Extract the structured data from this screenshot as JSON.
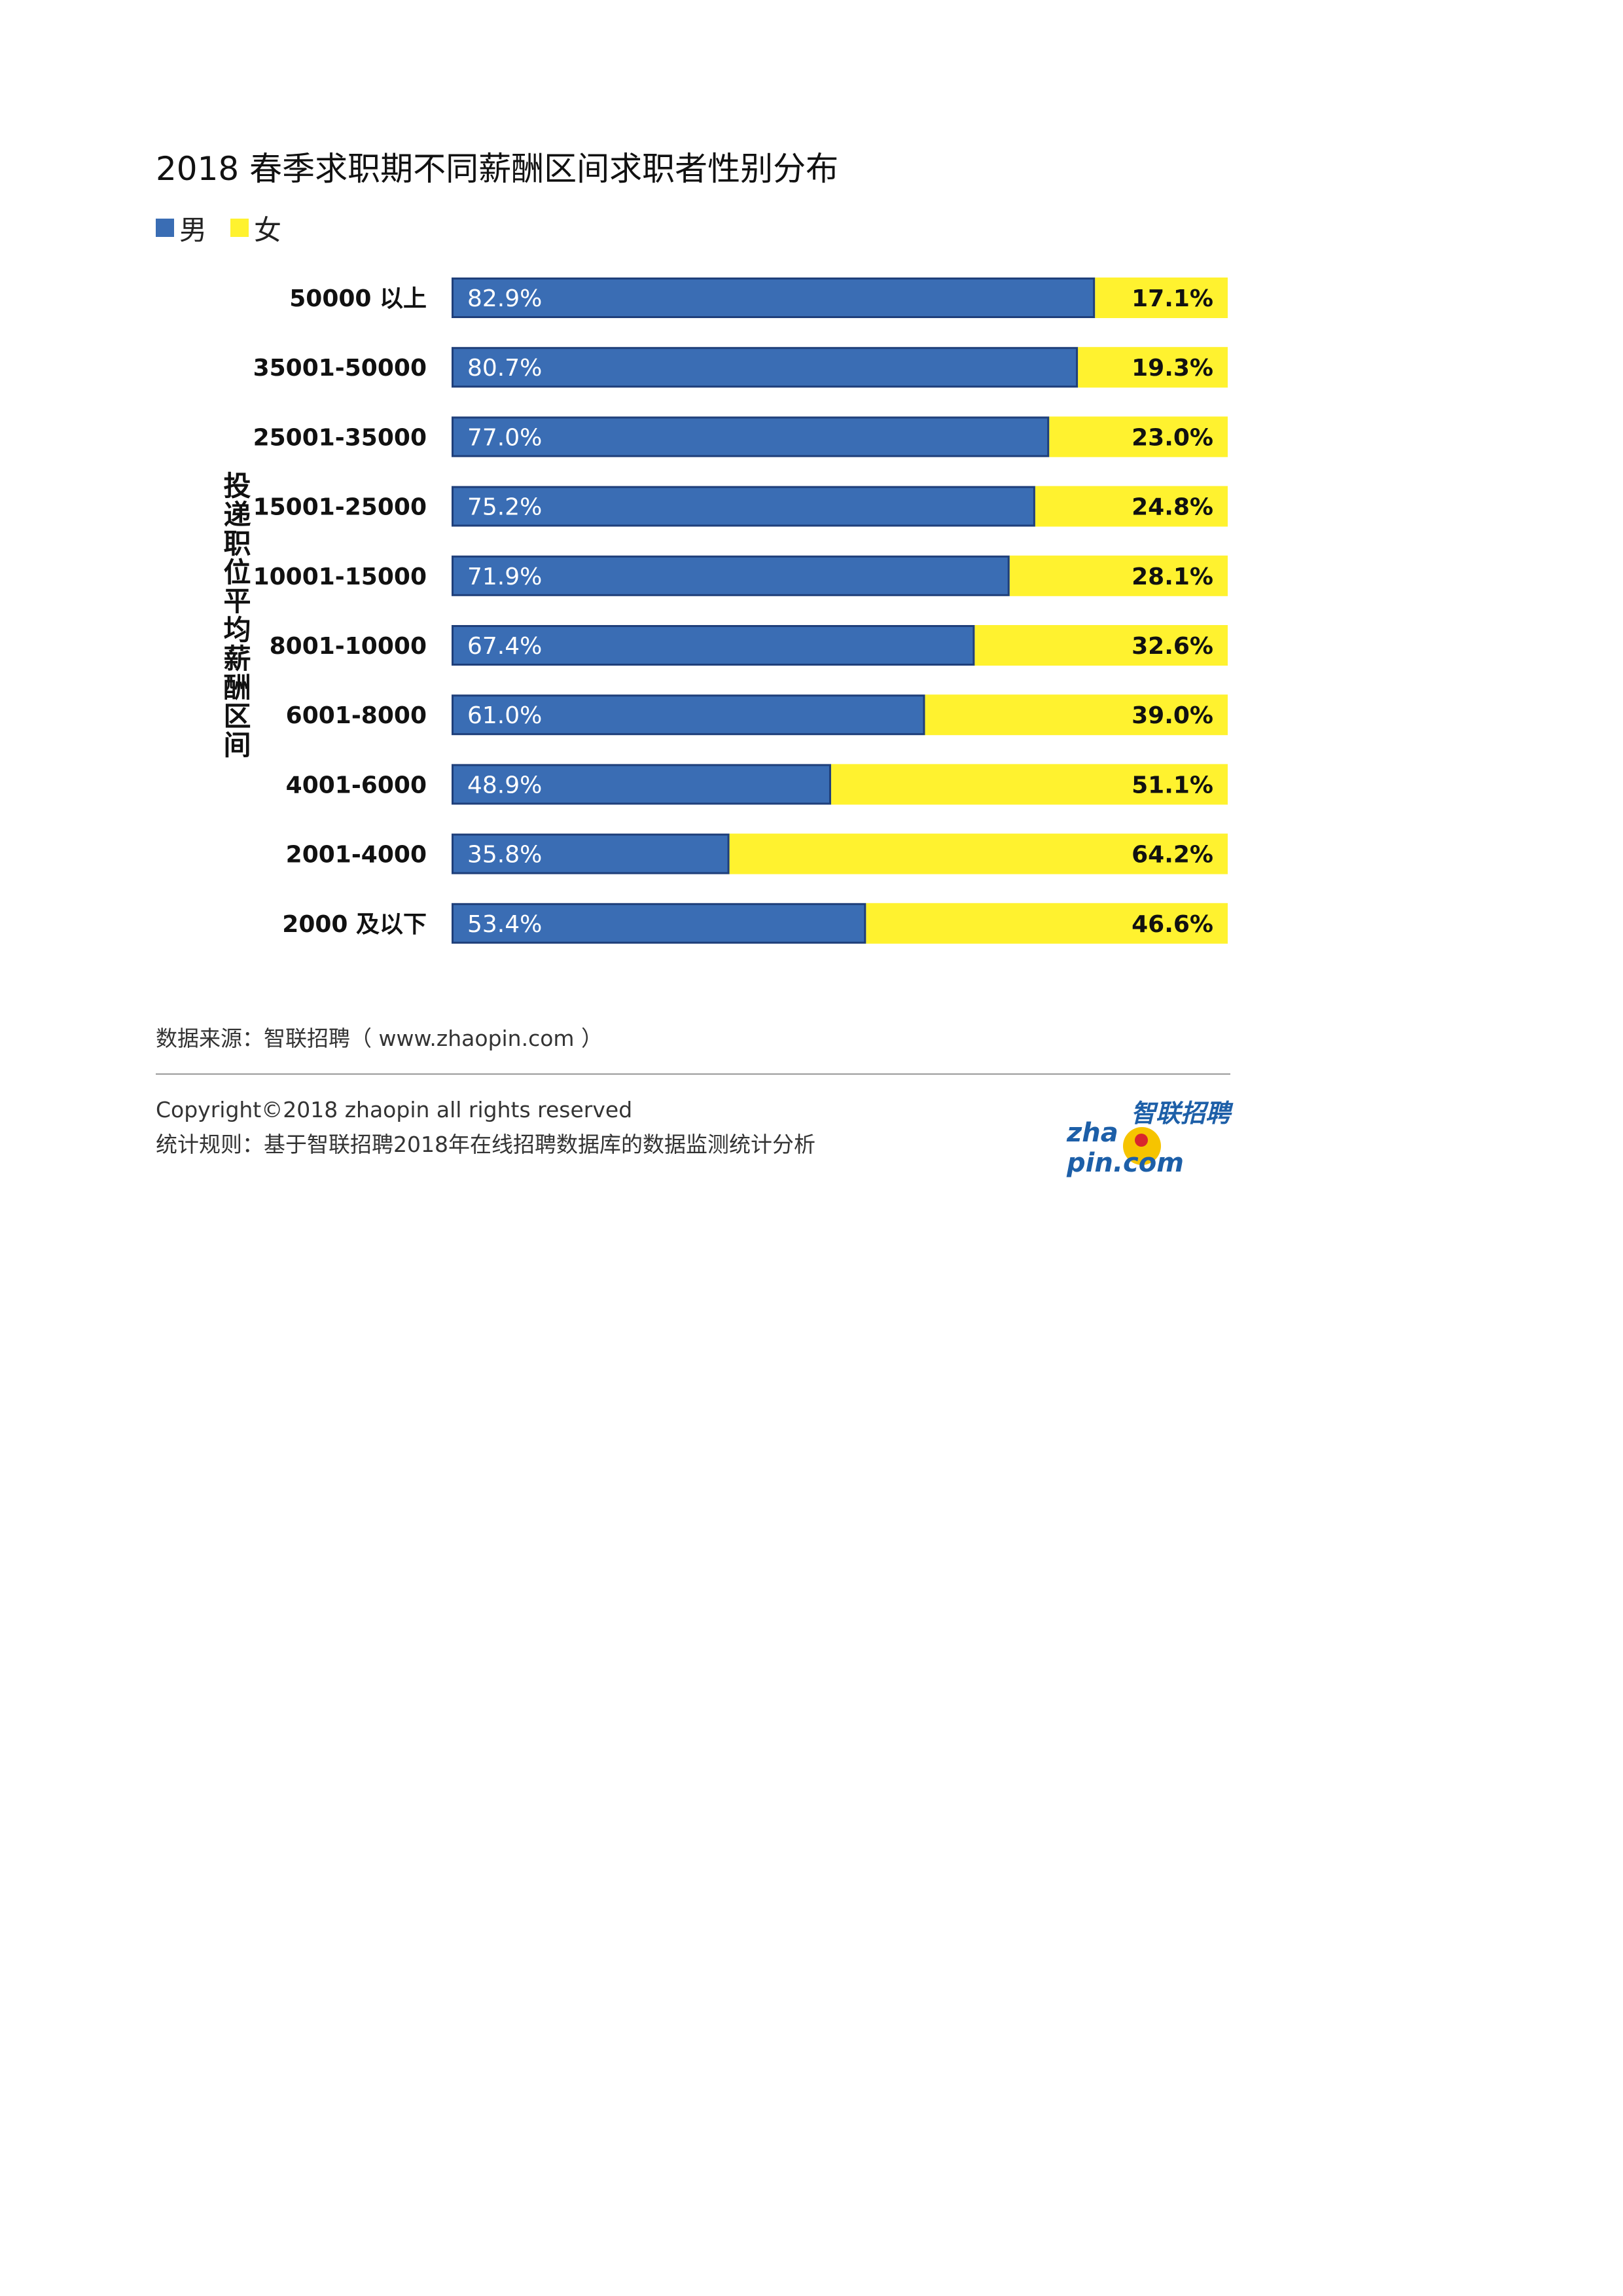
{
  "title": "2018 春季求职期不同薪酬区间求职者性别分布",
  "legend": [
    {
      "label": "男",
      "color": "#3a6db4"
    },
    {
      "label": "女",
      "color": "#fff22f"
    }
  ],
  "colors": {
    "male": "#3a6db4",
    "male_border": "#1f3f7a",
    "female": "#fff22f"
  },
  "chart_data": {
    "type": "bar",
    "stacked": true,
    "orientation": "horizontal",
    "ylabel": "投递职位平均薪酬区间",
    "categories": [
      "50000 以上",
      "35001-50000",
      "25001-35000",
      "15001-25000",
      "10001-15000",
      "8001-10000",
      "6001-8000",
      "4001-6000",
      "2001-4000",
      "2000 及以下"
    ],
    "series": [
      {
        "name": "男",
        "values": [
          82.9,
          80.7,
          77.0,
          75.2,
          71.9,
          67.4,
          61.0,
          48.9,
          35.8,
          53.4
        ],
        "labels": [
          "82.9%",
          "80.7%",
          "77.0%",
          "75.2%",
          "71.9%",
          "67.4%",
          "61.0%",
          "48.9%",
          "35.8%",
          "53.4%"
        ]
      },
      {
        "name": "女",
        "values": [
          17.1,
          19.3,
          23.0,
          24.8,
          28.1,
          32.6,
          39.0,
          51.1,
          64.2,
          46.6
        ],
        "labels": [
          "17.1%",
          "19.3%",
          "23.0%",
          "24.8%",
          "28.1%",
          "32.6%",
          "39.0%",
          "51.1%",
          "64.2%",
          "46.6%"
        ]
      }
    ],
    "xlim": [
      0,
      100
    ],
    "grid": false,
    "legend_position": "top-left"
  },
  "source": "数据来源：智联招聘（ www.zhaopin.com ）",
  "footer": {
    "copyright": "Copyright©2018 zhaopin all rights reserved",
    "rule": "统计规则：基于智联招聘2018年在线招聘数据库的数据监测统计分析"
  },
  "logo": {
    "cn": "智联招聘",
    "en": "zha  pin.com"
  }
}
